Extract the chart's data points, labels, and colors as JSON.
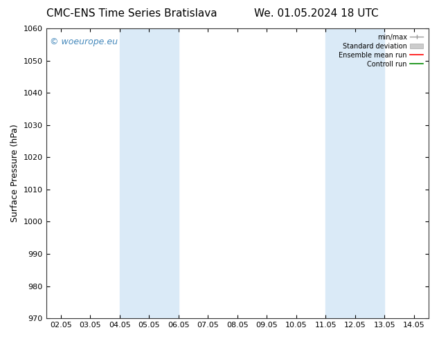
{
  "title_left": "CMC-ENS Time Series Bratislava",
  "title_right": "We. 01.05.2024 18 UTC",
  "ylabel": "Surface Pressure (hPa)",
  "ylim": [
    970,
    1060
  ],
  "yticks": [
    970,
    980,
    990,
    1000,
    1010,
    1020,
    1030,
    1040,
    1050,
    1060
  ],
  "xlim": [
    -0.5,
    12.5
  ],
  "xtick_labels": [
    "02.05",
    "03.05",
    "04.05",
    "05.05",
    "06.05",
    "07.05",
    "08.05",
    "09.05",
    "10.05",
    "11.05",
    "12.05",
    "13.05",
    "14.05"
  ],
  "xtick_positions": [
    0,
    1,
    2,
    3,
    4,
    5,
    6,
    7,
    8,
    9,
    10,
    11,
    12
  ],
  "shaded_bands": [
    {
      "xmin": 2.0,
      "xmax": 3.0
    },
    {
      "xmin": 3.0,
      "xmax": 4.0
    },
    {
      "xmin": 9.0,
      "xmax": 10.0
    },
    {
      "xmin": 10.0,
      "xmax": 11.0
    }
  ],
  "band_color": "#daeaf7",
  "watermark_text": "© woeurope.eu",
  "watermark_color": "#4488bb",
  "bg_color": "#ffffff",
  "legend_labels": [
    "min/max",
    "Standard deviation",
    "Ensemble mean run",
    "Controll run"
  ],
  "legend_colors": [
    "#999999",
    "#cccccc",
    "#ff0000",
    "#008800"
  ],
  "font_family": "DejaVu Sans",
  "title_fontsize": 11,
  "tick_fontsize": 8,
  "label_fontsize": 9,
  "watermark_fontsize": 9
}
